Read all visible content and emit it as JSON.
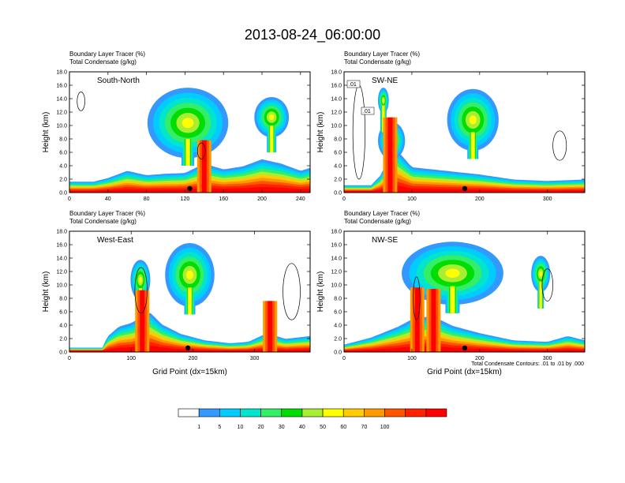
{
  "figure": {
    "title": "2013-08-24_06:00:00",
    "footnote": "Total Condensate Contours: .01 to .01 by .000"
  },
  "chart_data": [
    {
      "type": "contour",
      "name": "South-North",
      "line1": "Boundary Layer Tracer   (%)",
      "line2": "Total Condensate   (g/kg)",
      "ylabel": "Height (km)",
      "xlabel": "",
      "xlim": [
        0,
        250
      ],
      "ylim": [
        0,
        18
      ],
      "xticks": [
        0,
        40,
        80,
        120,
        160,
        200,
        240
      ],
      "yticks": [
        "0.0",
        "2.0",
        "4.0",
        "6.0",
        "8.0",
        "10.0",
        "12.0",
        "14.0",
        "16.0",
        "18.0"
      ],
      "contour_labels": [],
      "marker_x": 125,
      "layer": [
        [
          0,
          1.5
        ],
        [
          25,
          1.5
        ],
        [
          40,
          2.0
        ],
        [
          60,
          3.0
        ],
        [
          80,
          2.4
        ],
        [
          100,
          2.6
        ],
        [
          120,
          2.7
        ],
        [
          140,
          4.0
        ],
        [
          160,
          3.2
        ],
        [
          180,
          3.6
        ],
        [
          200,
          4.6
        ],
        [
          220,
          4.0
        ],
        [
          240,
          3.0
        ],
        [
          250,
          3.4
        ]
      ],
      "cloud": {
        "x": 123,
        "w": 42,
        "h": 3.1,
        "y0": 8.0,
        "y1": 12.3,
        "s0": 7,
        "s1": 3
      },
      "extra_clouds": [
        {
          "x": 210,
          "w": 18,
          "h": 2.0,
          "y0": 10.0,
          "y1": 12.0,
          "s0": 5,
          "s1": 3
        }
      ],
      "towers": [
        {
          "x": 140,
          "y": 3.8
        }
      ],
      "contours": [
        {
          "x": 12,
          "y": 13.6,
          "rx": 4,
          "ry": 1.4
        },
        {
          "x": 137,
          "y": 6.2,
          "rx": 4,
          "ry": 1.2
        }
      ]
    },
    {
      "type": "contour",
      "name": "SW-NE",
      "line1": "Boundary Layer Tracer   (%)",
      "line2": "Total Condensate   (g/kg)",
      "ylabel": "Height (km)",
      "xlabel": "",
      "xlim": [
        0,
        355
      ],
      "ylim": [
        0,
        18
      ],
      "xticks": [
        0,
        100,
        200,
        300
      ],
      "yticks": [
        "0.0",
        "2.0",
        "4.0",
        "6.0",
        "8.0",
        "10.0",
        "12.0",
        "14.0",
        "16.0",
        "18.0"
      ],
      "contour_labels": [
        ".01",
        ".01"
      ],
      "marker_x": 178,
      "layer": [
        [
          0,
          1.0
        ],
        [
          40,
          1.0
        ],
        [
          55,
          2.5
        ],
        [
          65,
          5.0
        ],
        [
          75,
          6.2
        ],
        [
          100,
          3.5
        ],
        [
          150,
          3.0
        ],
        [
          200,
          2.5
        ],
        [
          250,
          1.8
        ],
        [
          300,
          1.6
        ],
        [
          355,
          1.8
        ]
      ],
      "cloud": {
        "x": 190,
        "w": 38,
        "h": 3.0,
        "y0": 9.0,
        "y1": 12.2,
        "s0": 6,
        "s1": 3
      },
      "extra_clouds": [
        {
          "x": 70,
          "w": 20,
          "h": 1.8,
          "y0": 6.5,
          "y1": 8.5,
          "s0": 5,
          "s1": 3
        },
        {
          "x": 58,
          "w": 8,
          "h": 1.4,
          "y0": 13.0,
          "y1": 14.0,
          "s0": 3,
          "s1": 2
        }
      ],
      "towers": [
        {
          "x": 68,
          "y": 7.2
        }
      ],
      "contours": [
        {
          "x": 22,
          "y": 9.0,
          "rx": 9,
          "ry": 7.0
        },
        {
          "x": 318,
          "y": 7.0,
          "rx": 10,
          "ry": 2.2
        }
      ]
    },
    {
      "type": "contour",
      "name": "West-East",
      "line1": "Boundary Layer Tracer   (%)",
      "line2": "Total Condensate   (g/kg)",
      "ylabel": "Height (km)",
      "xlabel": "Grid Point (dx=15km)",
      "xlim": [
        0,
        390
      ],
      "ylim": [
        0,
        18
      ],
      "xticks": [
        0,
        100,
        200,
        300
      ],
      "yticks": [
        "0.0",
        "2.0",
        "4.0",
        "6.0",
        "8.0",
        "10.0",
        "12.0",
        "14.0",
        "16.0",
        "18.0"
      ],
      "contour_labels": [],
      "marker_x": 192,
      "layer": [
        [
          0,
          0.6
        ],
        [
          55,
          0.6
        ],
        [
          60,
          2.0
        ],
        [
          80,
          3.5
        ],
        [
          100,
          4.0
        ],
        [
          130,
          5.5
        ],
        [
          150,
          3.8
        ],
        [
          180,
          2.5
        ],
        [
          220,
          1.6
        ],
        [
          260,
          1.2
        ],
        [
          290,
          1.4
        ],
        [
          320,
          2.6
        ],
        [
          350,
          1.8
        ],
        [
          390,
          2.2
        ]
      ],
      "cloud": {
        "x": 195,
        "w": 40,
        "h": 3.1,
        "y0": 9.6,
        "y1": 12.9,
        "s0": 6,
        "s1": 3
      },
      "extra_clouds": [
        {
          "x": 115,
          "w": 16,
          "h": 2.0,
          "y0": 9.5,
          "y1": 11.5,
          "s0": 4,
          "s1": 3
        }
      ],
      "towers": [
        {
          "x": 118,
          "y": 5.2
        },
        {
          "x": 325,
          "y": 3.6
        }
      ],
      "contours": [
        {
          "x": 116,
          "y": 9.2,
          "rx": 10,
          "ry": 3.4
        },
        {
          "x": 360,
          "y": 9.0,
          "rx": 14,
          "ry": 4.2
        }
      ]
    },
    {
      "type": "contour",
      "name": "NW-SE",
      "line1": "Boundary Layer Tracer   (%)",
      "line2": "Total Condensate   (g/kg)",
      "ylabel": "Height (km)",
      "xlabel": "Grid Point (dx=15km)",
      "xlim": [
        0,
        355
      ],
      "ylim": [
        0,
        18
      ],
      "xticks": [
        0,
        100,
        200,
        300
      ],
      "yticks": [
        "0.0",
        "2.0",
        "4.0",
        "6.0",
        "8.0",
        "10.0",
        "12.0",
        "14.0",
        "16.0",
        "18.0"
      ],
      "contour_labels": [],
      "marker_x": 178,
      "layer": [
        [
          0,
          1.0
        ],
        [
          40,
          2.0
        ],
        [
          80,
          3.5
        ],
        [
          100,
          4.5
        ],
        [
          130,
          5.0
        ],
        [
          160,
          3.6
        ],
        [
          200,
          2.6
        ],
        [
          250,
          1.6
        ],
        [
          300,
          1.4
        ],
        [
          330,
          2.2
        ],
        [
          355,
          1.6
        ]
      ],
      "cloud": {
        "x": 160,
        "w": 75,
        "h": 3.0,
        "y0": 9.8,
        "y1": 13.2,
        "s0": 8,
        "s1": 4
      },
      "extra_clouds": [
        {
          "x": 290,
          "w": 14,
          "h": 1.8,
          "y0": 10.5,
          "y1": 12.3,
          "s0": 3,
          "s1": 2
        }
      ],
      "towers": [
        {
          "x": 108,
          "y": 5.6
        },
        {
          "x": 132,
          "y": 5.4
        }
      ],
      "contours": [
        {
          "x": 107,
          "y": 8.0,
          "rx": 5,
          "ry": 3.2
        },
        {
          "x": 300,
          "y": 10.0,
          "rx": 8,
          "ry": 2.4
        }
      ]
    }
  ],
  "colorbar": {
    "levels": [
      "1",
      "5",
      "10",
      "20",
      "30",
      "40",
      "50",
      "60",
      "70",
      "100"
    ],
    "colors": [
      "#ffffff",
      "#3399ff",
      "#00ccff",
      "#00e5cc",
      "#33ee66",
      "#00dd00",
      "#aaee33",
      "#ffff00",
      "#ffcc00",
      "#ff9900",
      "#ff5500",
      "#ff2200",
      "#ff0000"
    ]
  }
}
